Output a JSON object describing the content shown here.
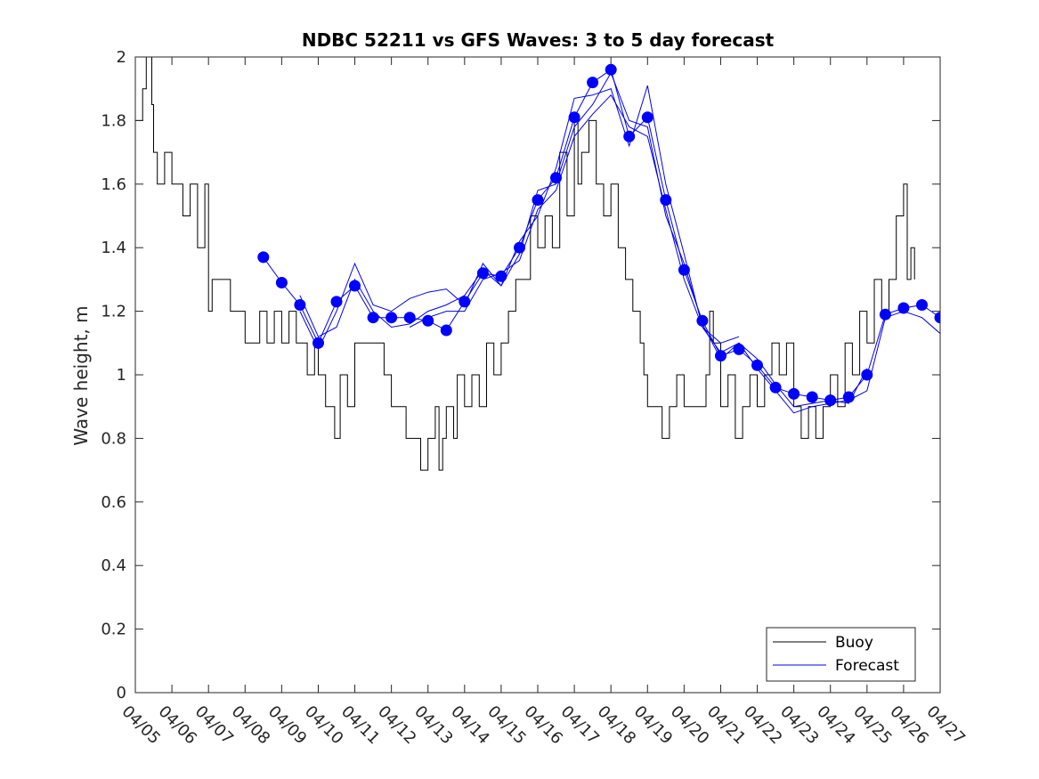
{
  "chart_data": {
    "type": "line",
    "title": "NDBC 52211 vs GFS Waves: 3 to 5 day forecast",
    "xlabel": "",
    "ylabel": "Wave height, m",
    "ylim": [
      0,
      2
    ],
    "yticks": [
      "0",
      "0.2",
      "0.4",
      "0.6",
      "0.8",
      "1",
      "1.2",
      "1.4",
      "1.6",
      "1.8",
      "2"
    ],
    "x_unit": "days from 04/05",
    "xlim": [
      0,
      22
    ],
    "xtick_labels": [
      "04/05",
      "04/06",
      "04/07",
      "04/08",
      "04/09",
      "04/10",
      "04/11",
      "04/12",
      "04/13",
      "04/14",
      "04/15",
      "04/16",
      "04/17",
      "04/18",
      "04/19",
      "04/20",
      "04/21",
      "04/22",
      "04/23",
      "04/24",
      "04/25",
      "04/26",
      "04/27"
    ],
    "legend": {
      "position": "bottom-right",
      "entries": [
        "Buoy",
        "Forecast"
      ]
    },
    "colors": {
      "buoy": "#000000",
      "forecast": "#0000ee",
      "marker": "#0000ff",
      "axis": "#262626"
    },
    "series": [
      {
        "name": "Buoy",
        "x": [
          0,
          0.2,
          0.3,
          0.45,
          0.5,
          0.6,
          0.8,
          1.0,
          1.1,
          1.3,
          1.5,
          1.7,
          1.9,
          2.0,
          2.1,
          2.2,
          2.6,
          2.8,
          3.0,
          3.4,
          3.6,
          3.8,
          4.0,
          4.2,
          4.4,
          4.6,
          4.7,
          4.8,
          4.9,
          5.0,
          5.1,
          5.2,
          5.3,
          5.45,
          5.6,
          5.8,
          6.0,
          6.4,
          6.6,
          6.8,
          7.0,
          7.2,
          7.4,
          7.6,
          7.8,
          8.0,
          8.2,
          8.3,
          8.4,
          8.5,
          8.6,
          8.7,
          8.8,
          9.0,
          9.2,
          9.4,
          9.6,
          9.8,
          10.0,
          10.2,
          10.4,
          10.6,
          10.8,
          11.0,
          11.2,
          11.4,
          11.6,
          11.8,
          12.0,
          12.1,
          12.2,
          12.4,
          12.6,
          12.8,
          13.0,
          13.2,
          13.4,
          13.6,
          13.8,
          13.9,
          14.0,
          14.2,
          14.4,
          14.6,
          14.8,
          15.0,
          15.2,
          15.4,
          15.6,
          15.7,
          15.8,
          16.0,
          16.2,
          16.4,
          16.6,
          16.8,
          17.0,
          17.2,
          17.4,
          17.6,
          17.8,
          18.0,
          18.2,
          18.4,
          18.6,
          18.8,
          19.0,
          19.2,
          19.4,
          19.6,
          19.8,
          20.0,
          20.2,
          20.4,
          20.6,
          20.8,
          21.0,
          21.1,
          21.2,
          21.3
        ],
        "values": [
          1.8,
          1.9,
          2.0,
          1.85,
          1.7,
          1.6,
          1.7,
          1.6,
          1.6,
          1.5,
          1.6,
          1.4,
          1.6,
          1.2,
          1.3,
          1.3,
          1.2,
          1.2,
          1.1,
          1.2,
          1.1,
          1.2,
          1.1,
          1.2,
          1.1,
          1.1,
          1.0,
          1.0,
          1.1,
          1.0,
          1.0,
          0.9,
          0.9,
          0.8,
          1.0,
          0.9,
          1.1,
          1.1,
          1.1,
          1.0,
          0.9,
          0.9,
          0.8,
          0.8,
          0.7,
          0.8,
          0.9,
          0.7,
          0.8,
          0.9,
          0.9,
          0.8,
          1.0,
          0.9,
          1.0,
          0.9,
          1.1,
          1.0,
          1.1,
          1.2,
          1.3,
          1.3,
          1.5,
          1.4,
          1.5,
          1.4,
          1.7,
          1.5,
          1.8,
          1.6,
          1.7,
          1.8,
          1.6,
          1.5,
          1.6,
          1.4,
          1.3,
          1.2,
          1.1,
          1.0,
          0.9,
          0.9,
          0.8,
          0.9,
          1.0,
          0.9,
          0.9,
          0.9,
          1.0,
          1.2,
          1.1,
          0.9,
          1.0,
          0.8,
          0.9,
          1.0,
          0.9,
          1.0,
          1.1,
          1.0,
          1.1,
          0.9,
          0.8,
          0.9,
          0.8,
          0.9,
          1.0,
          0.9,
          1.1,
          1.0,
          1.2,
          1.1,
          1.3,
          1.2,
          1.3,
          1.5,
          1.6,
          1.3,
          1.4,
          1.3
        ]
      },
      {
        "name": "Forecast",
        "x": [
          3.5,
          4.0,
          4.5,
          5.0,
          5.5,
          6.0,
          6.5,
          7.0,
          7.5,
          8.0,
          8.5,
          9.0,
          9.5,
          10.0,
          10.5,
          11.0,
          11.5,
          12.0,
          12.5,
          13.0,
          13.5,
          14.0,
          14.5,
          15.0,
          15.5,
          16.0,
          16.5,
          17.0,
          17.5,
          18.0,
          18.5,
          19.0,
          19.5,
          20.0,
          20.5,
          21.0,
          21.5,
          22.0
        ],
        "values": [
          1.37,
          1.29,
          1.22,
          1.1,
          1.23,
          1.28,
          1.18,
          1.18,
          1.18,
          1.17,
          1.14,
          1.23,
          1.32,
          1.31,
          1.4,
          1.55,
          1.62,
          1.81,
          1.92,
          1.96,
          1.75,
          1.81,
          1.55,
          1.33,
          1.17,
          1.06,
          1.08,
          1.03,
          0.96,
          0.94,
          0.93,
          0.92,
          0.93,
          1.0,
          1.19,
          1.21,
          1.22,
          1.18
        ]
      },
      {
        "name": "",
        "x": [
          4.5,
          5.0,
          5.5,
          6.0,
          6.5,
          7.0,
          7.5,
          8.0,
          8.5,
          9.0,
          9.5,
          10.0,
          10.5,
          11.0,
          11.5,
          12.0,
          12.5,
          13.0,
          13.5,
          14.0,
          14.5,
          15.0,
          15.5,
          16.0,
          16.5
        ],
        "values": [
          1.2,
          1.08,
          1.2,
          1.35,
          1.22,
          1.2,
          1.24,
          1.26,
          1.27,
          1.22,
          1.35,
          1.28,
          1.42,
          1.5,
          1.65,
          1.87,
          1.88,
          1.9,
          1.72,
          1.91,
          1.6,
          1.38,
          1.15,
          1.1,
          1.12
        ]
      },
      {
        "name": "",
        "x": [
          4.5,
          5.0,
          5.5,
          6.0,
          6.5,
          7.0,
          7.5,
          8.0,
          8.5,
          9.0,
          9.5,
          10.0,
          10.5,
          11.0,
          11.5,
          12.0,
          12.5,
          13.0,
          13.5,
          14.0,
          14.5,
          15.0,
          15.5,
          16.0,
          16.5,
          17.0,
          17.5,
          18.0,
          18.5,
          19.0,
          19.5,
          20.0
        ],
        "values": [
          1.25,
          1.12,
          1.15,
          1.3,
          1.2,
          1.15,
          1.16,
          1.2,
          1.22,
          1.25,
          1.33,
          1.28,
          1.38,
          1.58,
          1.6,
          1.78,
          1.85,
          1.95,
          1.8,
          1.78,
          1.5,
          1.35,
          1.16,
          1.05,
          1.1,
          1.05,
          0.97,
          0.9,
          0.91,
          0.92,
          0.91,
          1.02
        ]
      },
      {
        "name": "",
        "x": [
          7.5,
          8.0,
          8.5,
          9.0,
          9.5,
          10.0,
          10.5,
          11.0,
          11.5,
          12.0,
          12.5,
          13.0,
          13.5,
          14.0,
          14.5,
          15.0,
          15.5,
          16.0,
          16.5,
          17.0,
          17.5,
          18.0,
          18.5,
          19.0,
          19.5,
          20.0,
          20.5,
          21.0,
          21.5,
          22.0
        ],
        "values": [
          1.15,
          1.18,
          1.2,
          1.2,
          1.3,
          1.32,
          1.36,
          1.52,
          1.58,
          1.75,
          1.82,
          1.88,
          1.78,
          1.75,
          1.52,
          1.3,
          1.15,
          1.07,
          1.1,
          1.02,
          0.95,
          0.88,
          0.9,
          0.91,
          0.92,
          0.95,
          1.18,
          1.2,
          1.18,
          1.13
        ]
      }
    ]
  }
}
